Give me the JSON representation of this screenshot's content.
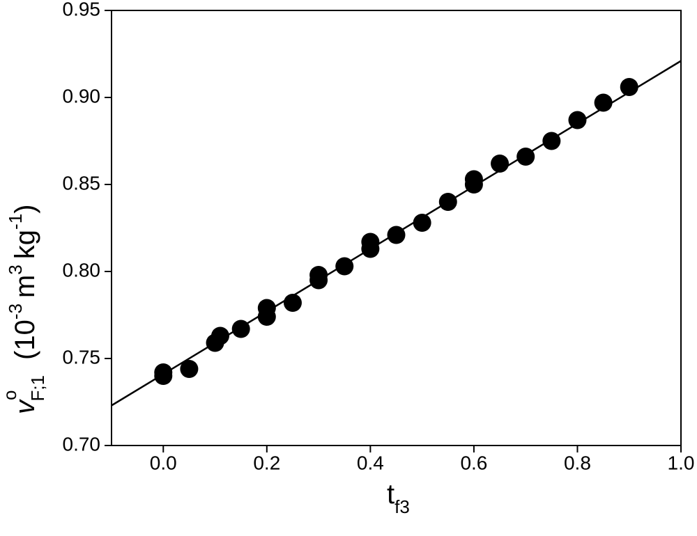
{
  "chart_data": {
    "type": "scatter",
    "x_label": {
      "main": "t",
      "sub": "f3"
    },
    "y_label": {
      "symbol": "v",
      "sup": "o",
      "sub": "F;1",
      "open": "(10",
      "exp1": "-3",
      "u1": "m",
      "exp2": "3",
      "u2": "kg",
      "exp3": "-1",
      "close": ")"
    },
    "xlim": [
      -0.1,
      1.0
    ],
    "ylim": [
      0.7,
      0.95
    ],
    "xticks": [
      {
        "value": 0.0,
        "label": "0.0"
      },
      {
        "value": 0.2,
        "label": "0.2"
      },
      {
        "value": 0.4,
        "label": "0.4"
      },
      {
        "value": 0.6,
        "label": "0.6"
      },
      {
        "value": 0.8,
        "label": "0.8"
      },
      {
        "value": 1.0,
        "label": "1.0"
      }
    ],
    "yticks": [
      {
        "value": 0.7,
        "label": "0.70"
      },
      0.75,
      {
        "value": 0.8,
        "label": "0.80"
      },
      0.85,
      {
        "value": 0.9,
        "label": "0.90"
      },
      0.95
    ],
    "series": [
      {
        "type": "scatter",
        "color": "#000000",
        "x": [
          0.0,
          0.0,
          0.05,
          0.1,
          0.11,
          0.15,
          0.2,
          0.2,
          0.25,
          0.3,
          0.3,
          0.35,
          0.4,
          0.4,
          0.45,
          0.5,
          0.55,
          0.6,
          0.6,
          0.65,
          0.7,
          0.75,
          0.8,
          0.85,
          0.9
        ],
        "values": [
          0.74,
          0.742,
          0.744,
          0.759,
          0.763,
          0.767,
          0.774,
          0.779,
          0.782,
          0.795,
          0.798,
          0.803,
          0.813,
          0.817,
          0.821,
          0.828,
          0.84,
          0.85,
          0.853,
          0.862,
          0.866,
          0.875,
          0.887,
          0.897,
          0.906
        ]
      },
      {
        "type": "line",
        "color": "#000000",
        "x": [
          -0.1,
          1.0
        ],
        "values": [
          0.723,
          0.921
        ]
      }
    ]
  }
}
